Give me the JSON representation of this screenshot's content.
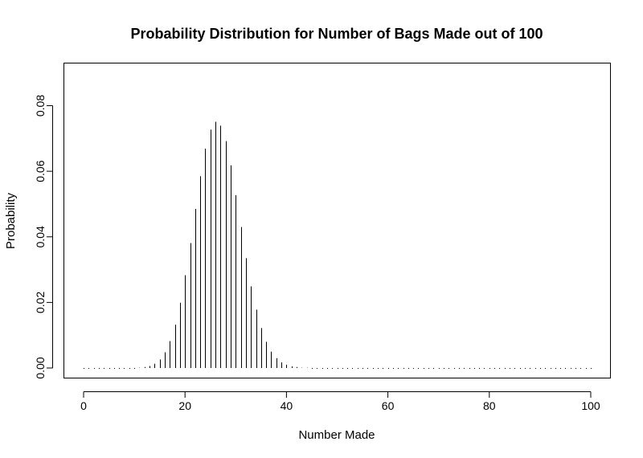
{
  "chart_data": {
    "type": "bar",
    "title": "Probability Distribution for Number of Bags Made out of 100",
    "xlabel": "Number Made",
    "ylabel": "Probability",
    "xlim": [
      0,
      100
    ],
    "ylim": [
      0,
      0.09
    ],
    "x_ticks": [
      0,
      20,
      40,
      60,
      80,
      100
    ],
    "y_ticks": [
      0.0,
      0.02,
      0.04,
      0.06,
      0.08
    ],
    "x_tick_labels": [
      "0",
      "20",
      "40",
      "60",
      "80",
      "100"
    ],
    "y_tick_labels": [
      "0.00",
      "0.02",
      "0.04",
      "0.06",
      "0.08"
    ],
    "grid": false,
    "x": [
      0,
      1,
      2,
      3,
      4,
      5,
      6,
      7,
      8,
      9,
      10,
      11,
      12,
      13,
      14,
      15,
      16,
      17,
      18,
      19,
      20,
      21,
      22,
      23,
      24,
      25,
      26,
      27,
      28,
      29,
      30,
      31,
      32,
      33,
      34,
      35,
      36,
      37,
      38,
      39,
      40,
      41,
      42,
      43,
      44,
      45,
      46,
      47,
      48,
      49,
      50,
      51,
      52,
      53,
      54,
      55,
      56,
      57,
      58,
      59,
      60,
      61,
      62,
      63,
      64,
      65,
      66,
      67,
      68,
      69,
      70,
      71,
      72,
      73,
      74,
      75,
      76,
      77,
      78,
      79,
      80,
      81,
      82,
      83,
      84,
      85,
      86,
      87,
      88,
      89,
      90,
      91,
      92,
      93,
      94,
      95,
      96,
      97,
      98,
      99,
      100
    ],
    "values": [
      0,
      0,
      0,
      0,
      0,
      0,
      0,
      0,
      0,
      0,
      0,
      0.0001,
      0.0003,
      0.0006,
      0.0013,
      0.0026,
      0.0048,
      0.0082,
      0.0132,
      0.0199,
      0.0283,
      0.0381,
      0.0485,
      0.0585,
      0.0669,
      0.0727,
      0.0751,
      0.0739,
      0.0692,
      0.0618,
      0.0527,
      0.043,
      0.0335,
      0.0249,
      0.0178,
      0.0122,
      0.008,
      0.005,
      0.003,
      0.0017,
      0.001,
      0.0005,
      0.0003,
      0.0001,
      0.0001,
      0,
      0,
      0,
      0,
      0,
      0,
      0,
      0,
      0,
      0,
      0,
      0,
      0,
      0,
      0,
      0,
      0,
      0,
      0,
      0,
      0,
      0,
      0,
      0,
      0,
      0,
      0,
      0,
      0,
      0,
      0,
      0,
      0,
      0,
      0,
      0,
      0,
      0,
      0,
      0,
      0,
      0,
      0,
      0,
      0,
      0,
      0,
      0,
      0,
      0,
      0,
      0,
      0,
      0,
      0,
      0
    ]
  }
}
